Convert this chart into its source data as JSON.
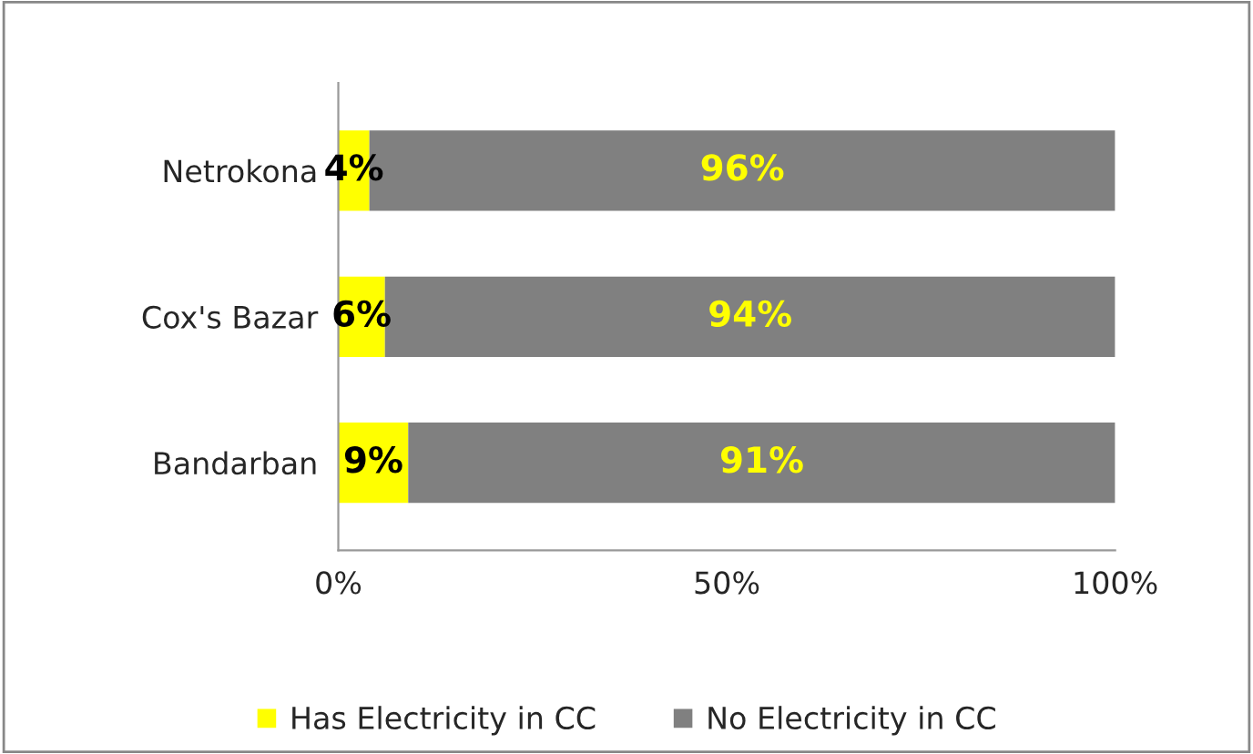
{
  "chart_data": {
    "type": "bar",
    "orientation": "horizontal",
    "stacked": true,
    "categories": [
      "Netrokona",
      "Cox's Bazar",
      "Bandarban"
    ],
    "series": [
      {
        "name": "Has Electricity in CC",
        "color": "#ffff00",
        "values": [
          4,
          6,
          9
        ],
        "value_labels": [
          "4%",
          "6%",
          "9%"
        ]
      },
      {
        "name": "No Electricity in CC",
        "color": "#808080",
        "values": [
          96,
          94,
          91
        ],
        "value_labels": [
          "96%",
          "94%",
          "91%"
        ]
      }
    ],
    "xlim": [
      0,
      100
    ],
    "xticks": [
      {
        "value": 0,
        "label": "0%"
      },
      {
        "value": 50,
        "label": "50%"
      },
      {
        "value": 100,
        "label": "100%"
      }
    ],
    "grid": false,
    "legend": "bottom"
  }
}
